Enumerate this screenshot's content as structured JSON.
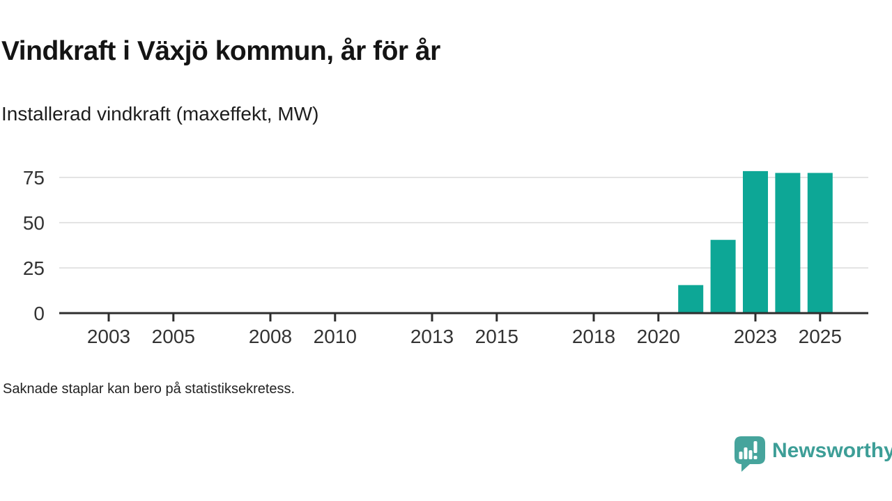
{
  "header": {
    "title": "Vindkraft i Växjö kommun, år för år",
    "subtitle": "Installerad vindkraft (maxeffekt, MW)"
  },
  "footnote": "Saknade staplar kan bero på statistiksekretess.",
  "branding": {
    "name": "Newsworthy",
    "logo_icon": "speech-bubble-with-bar-chart",
    "wordmark_color": "#3d9e97",
    "bubble_color": "#46a49c"
  },
  "chart_data": {
    "type": "bar",
    "title": "Vindkraft i Växjö kommun, år för år",
    "subtitle": "Installerad vindkraft (maxeffekt, MW)",
    "unit": "MW",
    "categories": [
      2021,
      2022,
      2023,
      2024,
      2025
    ],
    "values": [
      15.5,
      40.5,
      78.5,
      77.5,
      77.5
    ],
    "xlabel": "",
    "ylabel": "Installerad vindkraft (maxeffekt, MW)",
    "y_ticks": [
      0,
      25,
      50,
      75
    ],
    "ylim": [
      0,
      80
    ],
    "x_tick_years": [
      2003,
      2005,
      2008,
      2010,
      2013,
      2015,
      2018,
      2020,
      2023,
      2025
    ],
    "x_year_range": [
      2001.5,
      2026.5
    ],
    "grid": "horizontal",
    "legend_position": "none",
    "bar_color": "#0da796",
    "gridline_color": "#e4e4e4",
    "axis_color": "#2e2e2e",
    "tick_label_color": "#333333"
  }
}
